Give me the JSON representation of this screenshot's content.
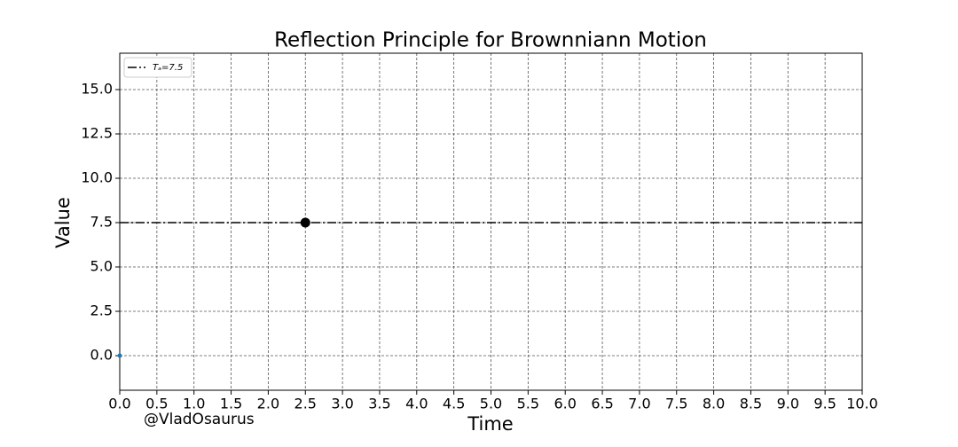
{
  "chart_data": {
    "type": "line",
    "title": "Reflection Principle for Brownniann Motion",
    "x_label": "Time",
    "y_label": "Value",
    "annotation": "@VladOsaurus",
    "xlim": [
      0,
      10
    ],
    "ylim": [
      -1.95,
      17.05
    ],
    "xticks": [
      {
        "value": 0,
        "label": "0.0"
      },
      0.5,
      {
        "value": 1,
        "label": "1.0"
      },
      1.5,
      {
        "value": 2,
        "label": "2.0"
      },
      2.5,
      {
        "value": 3,
        "label": "3.0"
      },
      3.5,
      {
        "value": 4,
        "label": "4.0"
      },
      4.5,
      {
        "value": 5,
        "label": "5.0"
      },
      5.5,
      {
        "value": 6,
        "label": "6.0"
      },
      6.5,
      {
        "value": 7,
        "label": "7.0"
      },
      7.5,
      {
        "value": 8,
        "label": "8.0"
      },
      8.5,
      {
        "value": 9,
        "label": "9.0"
      },
      9.5,
      {
        "value": 10,
        "label": "10.0"
      }
    ],
    "yticks": [
      {
        "value": 0,
        "label": "0.0"
      },
      2.5,
      {
        "value": 5,
        "label": "5.0"
      },
      7.5,
      {
        "value": 10,
        "label": "10.0"
      },
      12.5,
      {
        "value": 15,
        "label": "15.0"
      }
    ],
    "grid": true,
    "legend": "upper left",
    "hlines": [
      {
        "name": "Tₐ=7.5",
        "value": 7.5,
        "color": "#000000",
        "style": "dashdot"
      }
    ],
    "series": [
      {
        "x": [
          0
        ],
        "values": [
          0
        ],
        "color": "#1f77b4"
      },
      {
        "x": [
          2.5
        ],
        "values": [
          7.5
        ],
        "color": "#000000"
      }
    ]
  }
}
